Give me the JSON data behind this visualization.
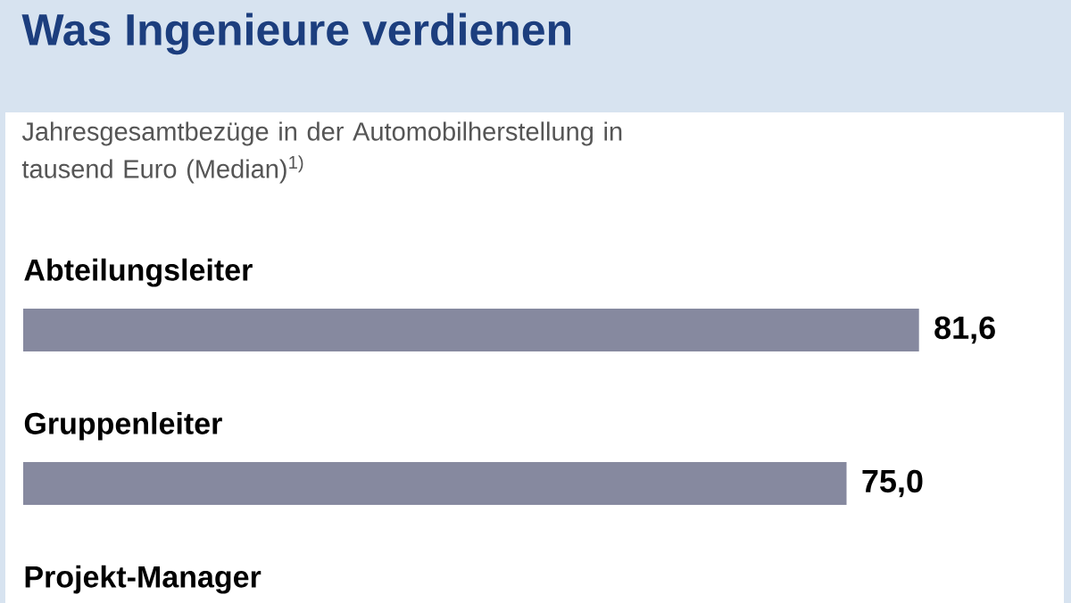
{
  "chart_data": {
    "type": "bar",
    "orientation": "horizontal",
    "title": "Was Ingenieure verdienen",
    "subtitle": "Jahresgesamtbezüge in der Automobilherstellung in tausend Euro (Median)$^{1)}$",
    "categories": [
      "Abteilungsleiter",
      "Gruppenleiter",
      "Projekt-Manager"
    ],
    "values": [
      81.6,
      75.0,
      null
    ],
    "value_labels": [
      "81,6",
      "75,0",
      null
    ],
    "color": "#86899f"
  }
}
